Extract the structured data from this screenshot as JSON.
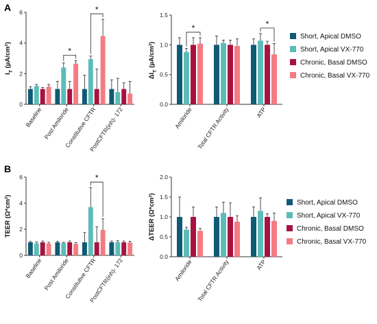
{
  "panel_labels": [
    "A",
    "B"
  ],
  "colors": {
    "Short, Apical DMSO": "#0f5a74",
    "Short, Apical VX-770": "#5cbcb8",
    "Chronic, Basal DMSO": "#a8123f",
    "Chronic, Basal VX-770": "#f47b82"
  },
  "legend_bold_second_row": [
    "Short, Apical DMSO",
    "Short, Apical VX-770",
    "Chronic, Basal DMSO",
    "Chronic, Basal VX-770"
  ],
  "chart_data": [
    {
      "id": "A-left",
      "type": "bar",
      "ylabel": "I_T (µA/cm²)",
      "ylim": [
        0,
        6
      ],
      "yticks": [
        0,
        2,
        4,
        6
      ],
      "categories": [
        "Baseline",
        "Post Amiloride",
        "Constitutive CFTR",
        "PostCFTR(inh)- 172"
      ],
      "series": [
        {
          "name": "Short, Apical DMSO",
          "values": [
            1.0,
            1.0,
            1.0,
            1.0
          ],
          "errors": [
            0.15,
            0.5,
            0.9,
            0.6
          ]
        },
        {
          "name": "Short, Apical VX-770",
          "values": [
            1.2,
            2.4,
            2.95,
            0.8
          ],
          "errors": [
            0.1,
            0.3,
            0.2,
            0.9
          ]
        },
        {
          "name": "Chronic, Basal DMSO",
          "values": [
            1.0,
            1.0,
            1.0,
            1.0
          ],
          "errors": [
            0.1,
            0.5,
            1.3,
            0.4
          ]
        },
        {
          "name": "Chronic, Basal VX-770",
          "values": [
            1.15,
            2.65,
            4.45,
            0.7
          ],
          "errors": [
            0.15,
            0.2,
            1.1,
            0.8
          ]
        }
      ],
      "significance": [
        {
          "category_index": 1,
          "from_series": 1,
          "to_series": 3,
          "label": "*"
        },
        {
          "category_index": 2,
          "from_series": 1,
          "to_series": 3,
          "label": "*"
        }
      ]
    },
    {
      "id": "A-right",
      "type": "bar",
      "ylabel": "ΔI_T (µA/cm²)",
      "ylim": [
        0,
        1.5
      ],
      "yticks": [
        0.0,
        0.5,
        1.0,
        1.5
      ],
      "categories": [
        "Amiloride",
        "Total CFTR Activity",
        "ATP"
      ],
      "series": [
        {
          "name": "Short, Apical DMSO",
          "values": [
            1.0,
            1.0,
            1.0
          ],
          "errors": [
            0.12,
            0.15,
            0.1
          ]
        },
        {
          "name": "Short, Apical VX-770",
          "values": [
            0.88,
            1.03,
            1.07
          ],
          "errors": [
            0.06,
            0.05,
            0.12
          ]
        },
        {
          "name": "Chronic, Basal DMSO",
          "values": [
            1.0,
            1.0,
            1.0
          ],
          "errors": [
            0.12,
            0.08,
            0.06
          ]
        },
        {
          "name": "Chronic, Basal VX-770",
          "values": [
            1.02,
            0.98,
            0.84
          ],
          "errors": [
            0.1,
            0.12,
            0.18
          ]
        }
      ],
      "significance": [
        {
          "category_index": 0,
          "from_series": 1,
          "to_series": 3,
          "label": "*"
        },
        {
          "category_index": 2,
          "from_series": 1,
          "to_series": 3,
          "label": "*"
        }
      ],
      "legend": [
        "Short, Apical DMSO",
        "Short, Apical VX-770",
        "Chronic, Basal DMSO",
        "Chronic, Basal VX-770"
      ]
    },
    {
      "id": "B-left",
      "type": "bar",
      "ylabel": "TEER (Ω*cm²)",
      "ylim": [
        0,
        6
      ],
      "yticks": [
        0,
        2,
        4,
        6
      ],
      "categories": [
        "Baseline",
        "Post Amiloride",
        "Constitutive CFTR",
        "PostCFTR(inh)- 172"
      ],
      "series": [
        {
          "name": "Short, Apical DMSO",
          "values": [
            1.0,
            1.0,
            1.0,
            1.0
          ],
          "errors": [
            0.07,
            0.08,
            0.75,
            0.1
          ]
        },
        {
          "name": "Short, Apical VX-770",
          "values": [
            0.92,
            0.95,
            3.7,
            1.02
          ],
          "errors": [
            0.1,
            0.05,
            1.5,
            0.1
          ]
        },
        {
          "name": "Chronic, Basal DMSO",
          "values": [
            1.0,
            1.0,
            1.0,
            1.0
          ],
          "errors": [
            0.1,
            0.1,
            1.2,
            0.1
          ]
        },
        {
          "name": "Chronic, Basal VX-770",
          "values": [
            0.9,
            0.88,
            1.95,
            0.98
          ],
          "errors": [
            0.1,
            0.1,
            0.85,
            0.1
          ]
        }
      ],
      "significance": [
        {
          "category_index": 2,
          "from_series": 1,
          "to_series": 3,
          "label": "*"
        }
      ]
    },
    {
      "id": "B-right",
      "type": "bar",
      "ylabel": "ΔTEER (Ω*cm²)",
      "ylim": [
        0,
        2.0
      ],
      "yticks": [
        0.0,
        0.5,
        1.0,
        1.5,
        2.0
      ],
      "categories": [
        "Amiloride",
        "Total CFTR Activity",
        "ATP"
      ],
      "series": [
        {
          "name": "Short, Apical DMSO",
          "values": [
            1.0,
            1.0,
            1.0
          ],
          "errors": [
            0.5,
            0.25,
            0.25
          ]
        },
        {
          "name": "Short, Apical VX-770",
          "values": [
            0.68,
            1.1,
            1.15
          ],
          "errors": [
            0.06,
            0.27,
            0.33
          ]
        },
        {
          "name": "Chronic, Basal DMSO",
          "values": [
            1.0,
            1.0,
            1.0
          ],
          "errors": [
            0.25,
            0.35,
            0.08
          ]
        },
        {
          "name": "Chronic, Basal VX-770",
          "values": [
            0.65,
            0.88,
            0.9
          ],
          "errors": [
            0.06,
            0.15,
            0.2
          ]
        }
      ],
      "significance": [],
      "legend": [
        "Short, Apical DMSO",
        "Short, Apical VX-770",
        "Chronic, Basal DMSO",
        "Chronic, Basal VX-770"
      ]
    }
  ]
}
